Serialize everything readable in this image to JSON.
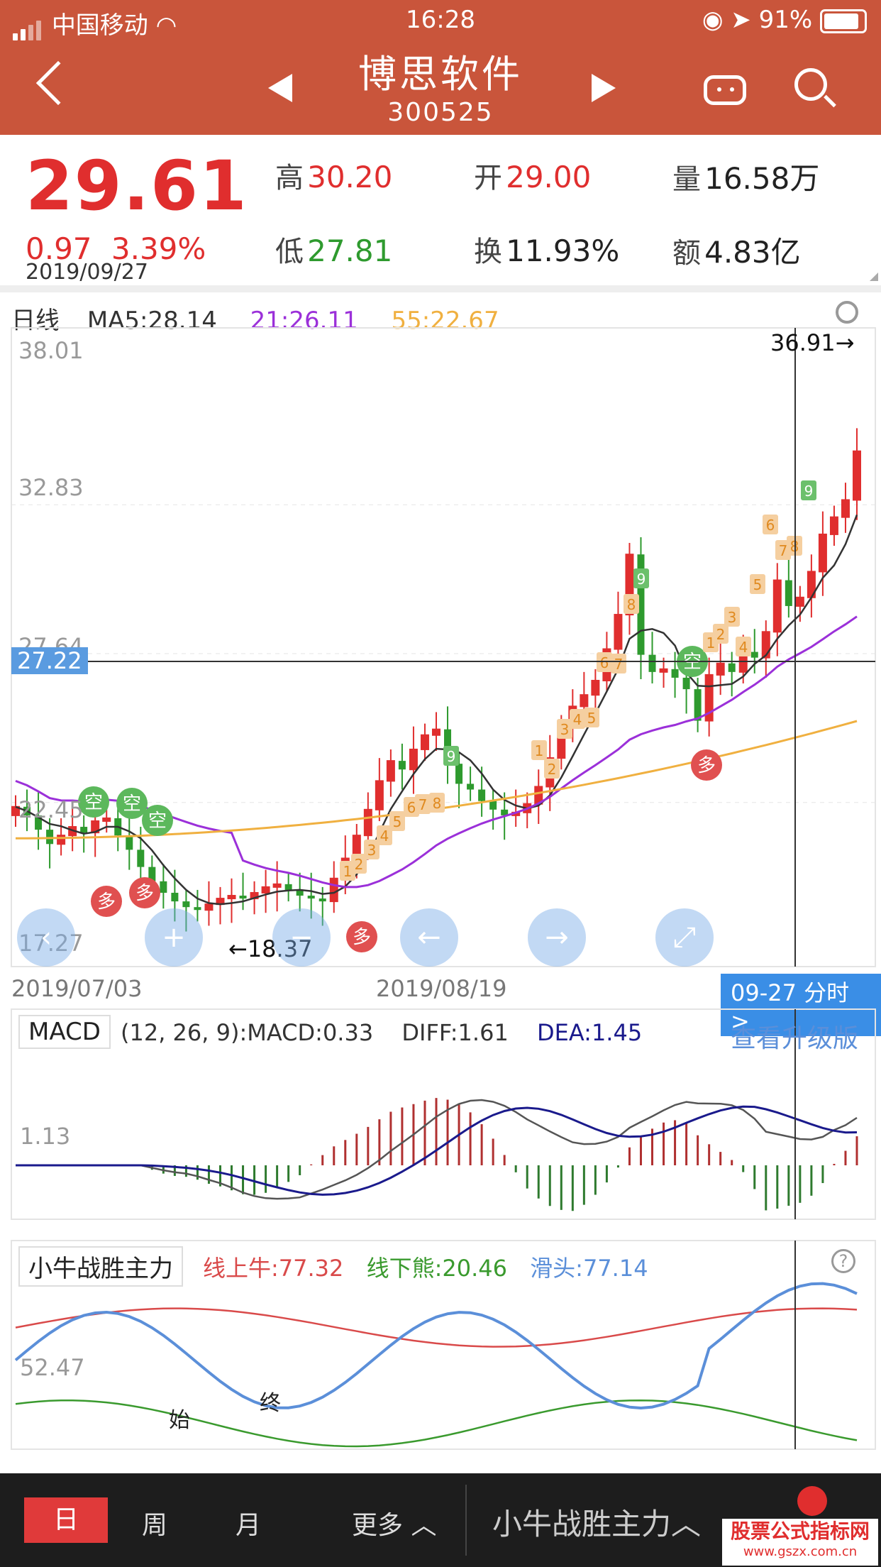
{
  "status": {
    "carrier": "中国移动",
    "time": "16:28",
    "battery": "91%"
  },
  "header": {
    "title": "博思软件",
    "code": "300525"
  },
  "quote": {
    "price": "29.61",
    "change": "0.97",
    "change_pct": "3.39%",
    "date": "2019/09/27",
    "high_label": "高",
    "high": "30.20",
    "open_label": "开",
    "open": "29.00",
    "vol_label": "量",
    "vol": "16.58万",
    "low_label": "低",
    "low": "27.81",
    "turn_label": "换",
    "turn": "11.93%",
    "amt_label": "额",
    "amt": "4.83亿"
  },
  "kline": {
    "period": "日线",
    "ma5": "MA5:28.14",
    "ma21": "21:26.11",
    "ma55": "55:22.67",
    "y_labels": [
      "38.01",
      "32.83",
      "27.64",
      "22.45",
      "17.27"
    ],
    "crosshair_value": "27.22",
    "max_label": "36.91→",
    "min_label": "←18.37",
    "x_start": "2019/07/03",
    "x_mid": "2019/08/19",
    "intraday_btn": "09-27 分时 >",
    "signal_kong": "空",
    "signal_duo": "多"
  },
  "macd": {
    "name": "MACD",
    "params": "(12, 26, 9):MACD:0.33",
    "diff": "DIFF:1.61",
    "dea": "DEA:1.45",
    "upgrade": "查看升级版",
    "y_label": "1.13"
  },
  "indicator": {
    "name": "小牛战胜主力",
    "bull": "线上牛:77.32",
    "bear": "线下熊:20.46",
    "slip": "滑头:77.14",
    "y_label": "52.47",
    "start": "始",
    "end": "终",
    "help": "?"
  },
  "bottom": {
    "tabs": [
      "日",
      "周",
      "月"
    ],
    "more": "更多",
    "indicator_sel": "小牛战胜主力",
    "watermark": "股票公式指标网",
    "watermark_url": "www.gszx.com.cn"
  },
  "colors": {
    "header": "#c9553b",
    "up": "#e02e2e",
    "down": "#2e9a2e",
    "ma21": "#9b30d9",
    "ma55": "#f0b040",
    "diff": "#555555",
    "dea": "#1a1a8c",
    "bull": "#d94a4a",
    "bear": "#3a9a2e",
    "slip": "#5b8fd9"
  }
}
